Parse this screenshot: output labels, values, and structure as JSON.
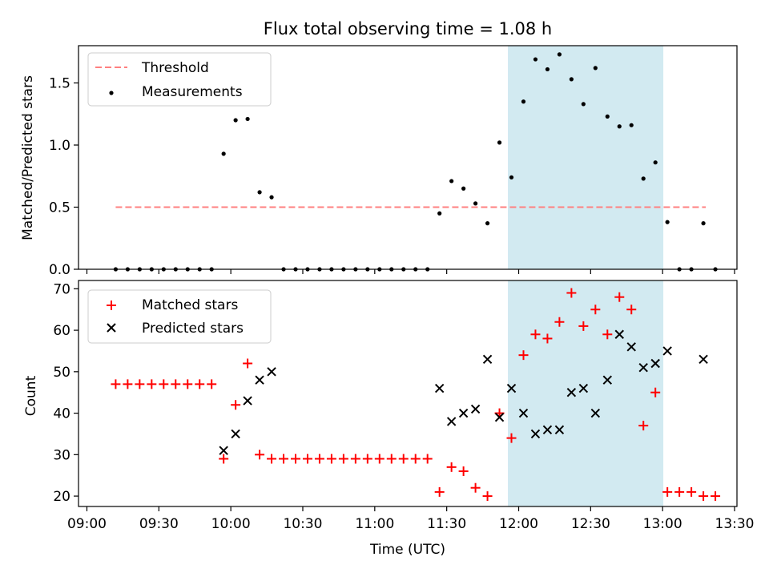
{
  "chart_data": {
    "type": "scatter",
    "title": "Flux total observing time = 1.08 h",
    "x_axis": {
      "label": "Time (UTC)",
      "ticks": [
        {
          "t": 540,
          "label": "09:00"
        },
        {
          "t": 570,
          "label": "09:30"
        },
        {
          "t": 600,
          "label": "10:00"
        },
        {
          "t": 630,
          "label": "10:30"
        },
        {
          "t": 660,
          "label": "11:00"
        },
        {
          "t": 690,
          "label": "11:30"
        },
        {
          "t": 720,
          "label": "12:00"
        },
        {
          "t": 750,
          "label": "12:30"
        },
        {
          "t": 780,
          "label": "13:00"
        },
        {
          "t": 810,
          "label": "13:30"
        }
      ],
      "range_minutes": [
        536.5,
        811
      ],
      "unit_note": "t = minutes after 00:00 UTC"
    },
    "shaded_region": {
      "from": 715.5,
      "to": 780.3,
      "color": "#add8e6"
    },
    "colors": {
      "threshold": "#ff8080",
      "measurements": "#000000",
      "matched": "#ff0000",
      "predicted": "#000000",
      "shade": "#add8e6"
    },
    "top_panel": {
      "ylabel": "Matched/Predicted stars",
      "ylim": [
        0,
        1.8
      ],
      "yticks": [
        {
          "v": 0,
          "label": "0.0"
        },
        {
          "v": 0.5,
          "label": "0.5"
        },
        {
          "v": 1.0,
          "label": "1.0"
        },
        {
          "v": 1.5,
          "label": "1.5"
        }
      ],
      "legend": {
        "location": "upper-left",
        "threshold_label": "Threshold",
        "measurements_label": "Measurements"
      },
      "threshold": {
        "value": 0.5,
        "x_from": 552,
        "x_to": 798
      },
      "measurements": {
        "x": [
          552,
          557,
          562,
          567,
          572,
          577,
          582,
          587,
          592,
          597,
          602,
          607,
          612,
          617,
          622,
          627,
          632,
          637,
          642,
          647,
          652,
          657,
          662,
          667,
          672,
          677,
          682,
          687,
          692,
          697,
          702,
          707,
          712,
          717,
          722,
          727,
          732,
          737,
          742,
          747,
          752,
          757,
          762,
          767,
          772,
          777,
          782,
          787,
          792,
          797,
          802
        ],
        "y": [
          0,
          0,
          0,
          0,
          0,
          0,
          0,
          0,
          0,
          0.93,
          1.2,
          1.21,
          0.62,
          0.58,
          0,
          0,
          0,
          0,
          0,
          0,
          0,
          0,
          0,
          0,
          0,
          0,
          0,
          0.45,
          0.71,
          0.65,
          0.53,
          0.37,
          1.02,
          0.74,
          1.35,
          1.69,
          1.61,
          1.73,
          1.53,
          1.33,
          1.62,
          1.23,
          1.15,
          1.16,
          0.73,
          0.86,
          0.38,
          0,
          0,
          0.37,
          0
        ]
      }
    },
    "bottom_panel": {
      "ylabel": "Count",
      "ylim": [
        17.5,
        72
      ],
      "yticks": [
        {
          "v": 20,
          "label": "20"
        },
        {
          "v": 30,
          "label": "30"
        },
        {
          "v": 40,
          "label": "40"
        },
        {
          "v": 50,
          "label": "50"
        },
        {
          "v": 60,
          "label": "60"
        },
        {
          "v": 70,
          "label": "70"
        }
      ],
      "legend": {
        "location": "upper-left",
        "matched_label": "Matched stars",
        "predicted_label": "Predicted stars"
      },
      "matched": {
        "x": [
          552,
          557,
          562,
          567,
          572,
          577,
          582,
          587,
          592,
          597,
          602,
          607,
          612,
          617,
          622,
          627,
          632,
          637,
          642,
          647,
          652,
          657,
          662,
          667,
          672,
          677,
          682,
          687,
          692,
          697,
          702,
          707,
          712,
          717,
          722,
          727,
          732,
          737,
          742,
          747,
          752,
          757,
          762,
          767,
          772,
          777,
          782,
          787,
          792,
          797,
          802
        ],
        "y": [
          47,
          47,
          47,
          47,
          47,
          47,
          47,
          47,
          47,
          29,
          42,
          52,
          30,
          29,
          29,
          29,
          29,
          29,
          29,
          29,
          29,
          29,
          29,
          29,
          29,
          29,
          29,
          21,
          27,
          26,
          22,
          20,
          40,
          34,
          54,
          59,
          58,
          62,
          69,
          61,
          65,
          59,
          68,
          65,
          37,
          45,
          21,
          21,
          21,
          20,
          20
        ]
      },
      "predicted": {
        "x": [
          597,
          602,
          607,
          612,
          617,
          687,
          692,
          697,
          702,
          707,
          712,
          717,
          722,
          727,
          732,
          737,
          742,
          747,
          752,
          757,
          762,
          767,
          772,
          777,
          782,
          797
        ],
        "y": [
          31,
          35,
          43,
          48,
          50,
          46,
          38,
          40,
          41,
          53,
          39,
          46,
          40,
          35,
          36,
          36,
          45,
          46,
          40,
          48,
          59,
          56,
          51,
          52,
          55,
          53
        ]
      }
    }
  }
}
